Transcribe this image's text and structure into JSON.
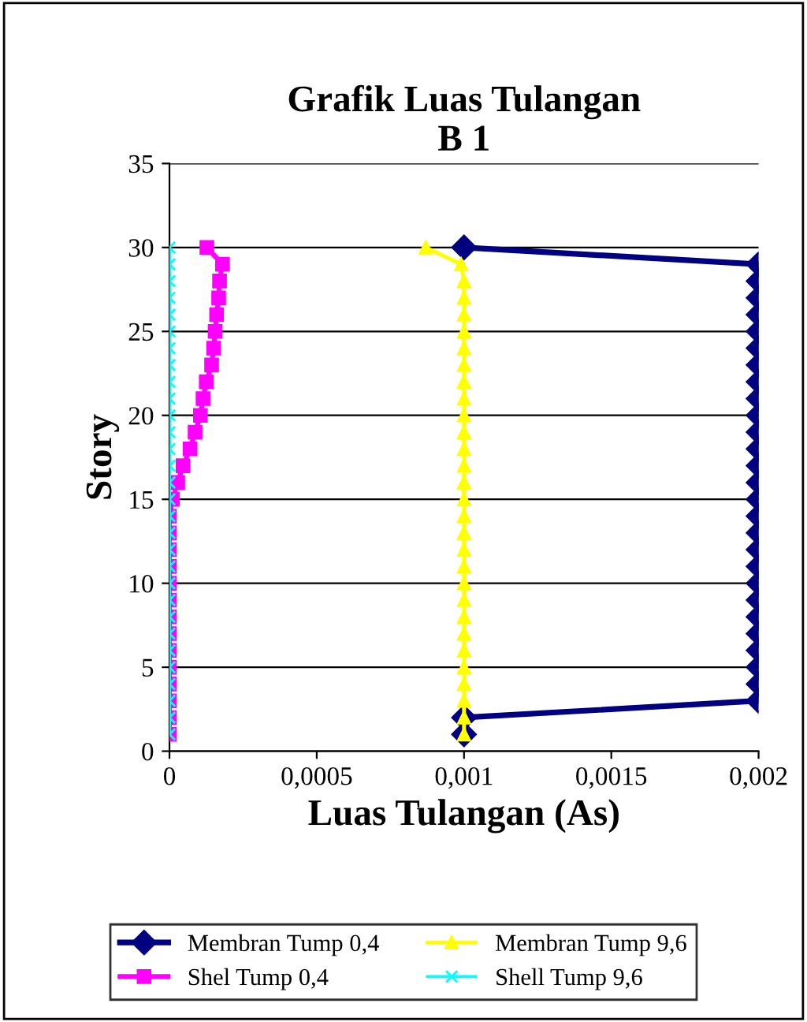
{
  "chart_data": {
    "type": "line",
    "title": "Grafik Luas Tulangan\nB 1",
    "xlabel": "Luas Tulangan (As)",
    "ylabel": "Story",
    "xlim": [
      0,
      0.002
    ],
    "xticks": [
      {
        "value": 0,
        "label": "0"
      },
      {
        "value": 0.0005,
        "label": "0,0005"
      },
      {
        "value": 0.001,
        "label": "0,001"
      },
      {
        "value": 0.0015,
        "label": "0,0015"
      },
      {
        "value": 0.002,
        "label": "0,002"
      }
    ],
    "ylim": [
      0,
      35
    ],
    "yticks": [
      0,
      5,
      10,
      15,
      20,
      25,
      30,
      35
    ],
    "grid": "y",
    "legend": "bottom",
    "line_style": "solid",
    "series": [
      {
        "name": "Membran Tump 0,4",
        "color": "#000080",
        "marker": "diamond",
        "x": [
          0.001,
          0.001,
          0.002,
          0.002,
          0.002,
          0.002,
          0.002,
          0.002,
          0.002,
          0.002,
          0.002,
          0.002,
          0.002,
          0.002,
          0.002,
          0.002,
          0.002,
          0.002,
          0.002,
          0.002,
          0.002,
          0.002,
          0.002,
          0.002,
          0.002,
          0.002,
          0.002,
          0.002,
          0.002,
          0.001
        ],
        "values": [
          1,
          2,
          3,
          4,
          5,
          6,
          7,
          8,
          9,
          10,
          11,
          12,
          13,
          14,
          15,
          16,
          17,
          18,
          19,
          20,
          21,
          22,
          23,
          24,
          25,
          26,
          27,
          28,
          29,
          30
        ]
      },
      {
        "name": "Shel Tump 0,4",
        "color": "#ff00ff",
        "marker": "square",
        "x": [
          0,
          0,
          0,
          0,
          0,
          0,
          0,
          0,
          0,
          0,
          0,
          0,
          0,
          0,
          1e-05,
          2.8e-05,
          4.6e-05,
          7e-05,
          8.7e-05,
          0.000105,
          0.000114,
          0.000125,
          0.000143,
          0.00015,
          0.000155,
          0.00016,
          0.000167,
          0.00017,
          0.00018,
          0.000127
        ],
        "values": [
          1,
          2,
          3,
          4,
          5,
          6,
          7,
          8,
          9,
          10,
          11,
          12,
          13,
          14,
          15,
          16,
          17,
          18,
          19,
          20,
          21,
          22,
          23,
          24,
          25,
          26,
          27,
          28,
          29,
          30
        ]
      },
      {
        "name": "Membran Tump 9,6",
        "color": "#ffff00",
        "marker": "triangle",
        "x": [
          0.001,
          0.001,
          0.001,
          0.001,
          0.001,
          0.001,
          0.001,
          0.001,
          0.001,
          0.001,
          0.001,
          0.001,
          0.001,
          0.001,
          0.001,
          0.001,
          0.001,
          0.001,
          0.001,
          0.001,
          0.001,
          0.001,
          0.001,
          0.001,
          0.001,
          0.001,
          0.001,
          0.001,
          0.00099,
          0.00087
        ],
        "values": [
          1,
          2,
          3,
          4,
          5,
          6,
          7,
          8,
          9,
          10,
          11,
          12,
          13,
          14,
          15,
          16,
          17,
          18,
          19,
          20,
          21,
          22,
          23,
          24,
          25,
          26,
          27,
          28,
          29,
          30
        ]
      },
      {
        "name": "Shell Tump 9,6",
        "color": "#00ffff",
        "marker": "cross",
        "x": [
          0,
          0,
          0,
          0,
          0,
          0,
          0,
          0,
          0,
          0,
          0,
          0,
          0,
          0,
          0,
          0,
          0,
          0,
          0,
          0,
          0,
          0,
          0,
          0,
          0,
          0,
          0,
          0,
          0,
          0
        ],
        "values": [
          1,
          2,
          3,
          4,
          5,
          6,
          7,
          8,
          9,
          10,
          11,
          12,
          13,
          14,
          15,
          16,
          17,
          18,
          19,
          20,
          21,
          22,
          23,
          24,
          25,
          26,
          27,
          28,
          29,
          30
        ]
      }
    ]
  }
}
